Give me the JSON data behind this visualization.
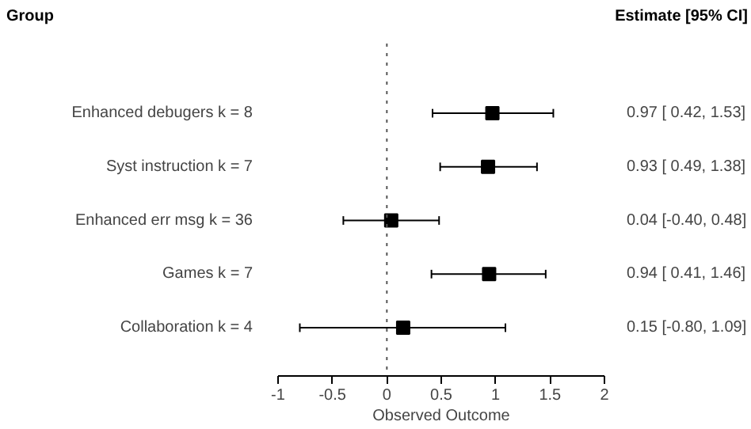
{
  "chart_data": {
    "type": "scatter",
    "orientation": "horizontal",
    "ylabel": "Group",
    "y2label": "Estimate [95% CI]",
    "xlabel": "Observed Outcome",
    "categories": [
      "Enhanced debugers k = 8",
      "Syst instruction k = 7",
      "Enhanced err msg k = 36",
      "Games k = 7",
      "Collaboration k = 4"
    ],
    "values": [
      0.97,
      0.93,
      0.04,
      0.94,
      0.15
    ],
    "errors": [
      [
        0.42,
        1.53
      ],
      [
        0.49,
        1.38
      ],
      [
        -0.4,
        0.48
      ],
      [
        0.41,
        1.46
      ],
      [
        -0.8,
        1.09
      ]
    ],
    "value_labels": [
      "0.97 [ 0.42, 1.53]",
      "0.93 [ 0.49, 1.38]",
      "0.04 [-0.40, 0.48]",
      "0.94 [ 0.41, 1.46]",
      "0.15 [-0.80, 1.09]"
    ],
    "color": "#000000",
    "marker": "square",
    "xlim": [
      -1,
      2
    ],
    "xticks": [
      -1,
      {
        "value": -0.5,
        "label": "-0.5"
      },
      0,
      {
        "value": 0.5,
        "label": "0.5"
      },
      1,
      {
        "value": 1.5,
        "label": "1.5"
      },
      2
    ],
    "ref_lines": [
      {
        "axis": "x",
        "value": 0,
        "line_style": "dotted",
        "color": "#555555"
      }
    ],
    "grid": false
  }
}
